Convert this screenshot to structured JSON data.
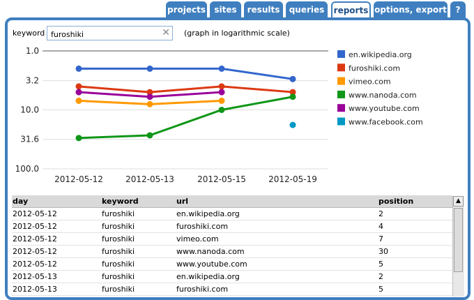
{
  "tabs": [
    {
      "label": "projects",
      "active": false
    },
    {
      "label": "sites",
      "active": false
    },
    {
      "label": "results",
      "active": false
    },
    {
      "label": "queries",
      "active": false
    },
    {
      "label": "reports",
      "active": true
    },
    {
      "label": "options, export",
      "active": false
    },
    {
      "label": "?",
      "active": false
    }
  ],
  "keyword": {
    "label": "keyword",
    "value": "furoshiki",
    "clear_icon": "close-icon",
    "note": "(graph in logarithmic scale)"
  },
  "colors": {
    "tab_blue": "#3f7fbf"
  },
  "chart_data": {
    "type": "line",
    "y_scale": "log",
    "y_reversed": true,
    "ylim": [
      1,
      100
    ],
    "y_ticks": [
      "1.0",
      "3.2",
      "10.0",
      "31.6",
      "100.0"
    ],
    "y_tick_values": [
      1,
      3.2,
      10,
      31.6,
      100
    ],
    "categories": [
      "2012-05-12",
      "2012-05-13",
      "2012-05-15",
      "2012-05-19"
    ],
    "legend_position": "right",
    "series": [
      {
        "name": "en.wikipedia.org",
        "color": "#3366cc",
        "values": [
          2,
          2,
          2,
          3
        ]
      },
      {
        "name": "furoshiki.com",
        "color": "#dc3912",
        "values": [
          4,
          5,
          4,
          5
        ]
      },
      {
        "name": "vimeo.com",
        "color": "#ff9900",
        "values": [
          7,
          8,
          7,
          null
        ]
      },
      {
        "name": "www.nanoda.com",
        "color": "#109618",
        "values": [
          30,
          27,
          10,
          6
        ]
      },
      {
        "name": "www.youtube.com",
        "color": "#990099",
        "values": [
          5,
          6,
          5,
          null
        ]
      },
      {
        "name": "www.facebook.com",
        "color": "#0099c6",
        "values": [
          null,
          null,
          null,
          18
        ]
      }
    ]
  },
  "table": {
    "columns": [
      "day",
      "keyword",
      "url",
      "position"
    ],
    "rows": [
      [
        "2012-05-12",
        "furoshiki",
        "en.wikipedia.org",
        "2"
      ],
      [
        "2012-05-12",
        "furoshiki",
        "furoshiki.com",
        "4"
      ],
      [
        "2012-05-12",
        "furoshiki",
        "vimeo.com",
        "7"
      ],
      [
        "2012-05-12",
        "furoshiki",
        "www.nanoda.com",
        "30"
      ],
      [
        "2012-05-12",
        "furoshiki",
        "www.youtube.com",
        "5"
      ],
      [
        "2012-05-13",
        "furoshiki",
        "en.wikipedia.org",
        "2"
      ],
      [
        "2012-05-13",
        "furoshiki",
        "furoshiki.com",
        "5"
      ]
    ]
  }
}
